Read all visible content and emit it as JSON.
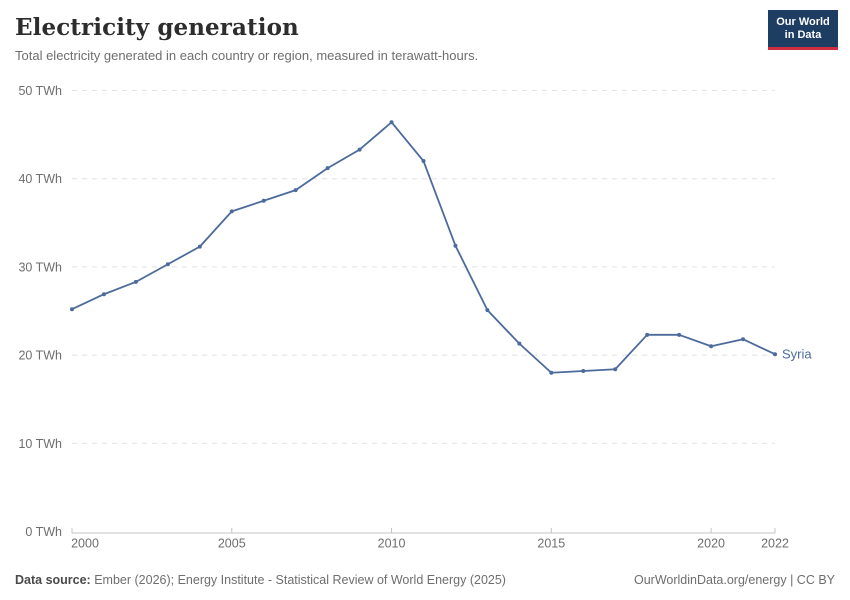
{
  "header": {
    "title": "Electricity generation",
    "subtitle": "Total electricity generated in each country or region, measured in terawatt-hours.",
    "logo": {
      "line1": "Our World",
      "line2": "in Data"
    }
  },
  "chart_data": {
    "type": "line",
    "title": "Electricity generation",
    "unit": "TWh",
    "x": [
      2000,
      2001,
      2002,
      2003,
      2004,
      2005,
      2006,
      2007,
      2008,
      2009,
      2010,
      2011,
      2012,
      2013,
      2014,
      2015,
      2016,
      2017,
      2018,
      2019,
      2020,
      2021,
      2022
    ],
    "series": [
      {
        "name": "Syria",
        "color": "#4c6a9c",
        "values": [
          25.2,
          26.9,
          28.3,
          30.3,
          32.3,
          36.3,
          37.5,
          38.7,
          41.2,
          43.3,
          46.4,
          42.0,
          32.4,
          25.1,
          21.3,
          18.0,
          18.2,
          18.4,
          22.3,
          22.3,
          21.0,
          21.8,
          20.1
        ]
      }
    ],
    "xlim": [
      2000,
      2022
    ],
    "ylim": [
      0,
      50
    ],
    "xticks": [
      2000,
      2005,
      2010,
      2015,
      2020,
      2022
    ],
    "xtick_labels": [
      "2000",
      "2005",
      "2010",
      "2015",
      "2020",
      "2022"
    ],
    "yticks": [
      0,
      10,
      20,
      30,
      40,
      50
    ],
    "ytick_labels": [
      "0 TWh",
      "10 TWh",
      "20 TWh",
      "30 TWh",
      "40 TWh",
      "50 TWh"
    ],
    "grid": "horizontal-dashed",
    "legend_position": "end-of-line"
  },
  "footer": {
    "datasource_label": "Data source:",
    "datasource_text": " Ember (2026); Energy Institute - Statistical Review of World Energy (2025)",
    "credit": "OurWorldinData.org/energy | CC BY"
  },
  "colors": {
    "line": "#4c6a9c",
    "gridline": "#e2e2e2",
    "axis": "#c4c4c4",
    "tick_text": "#6e6e6e",
    "logo_bg": "#1d3d63",
    "logo_accent": "#cf2e41"
  }
}
